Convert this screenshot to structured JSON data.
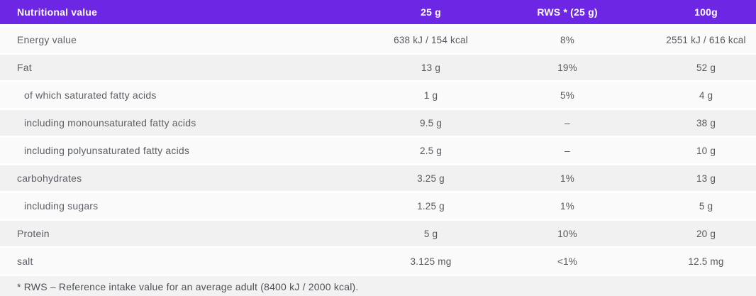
{
  "header": {
    "col_label": "Nutritional value",
    "col_25g": "25 g",
    "col_rws": "RWS * (25 g)",
    "col_100g": "100g"
  },
  "rows": [
    {
      "label": "Energy value",
      "v25": "638 kJ / 154 kcal",
      "rws": "8%",
      "v100": "2551 kJ / 616 kcal"
    },
    {
      "label": "Fat",
      "v25": "13 g",
      "rws": "19%",
      "v100": "52 g"
    },
    {
      "label": "of which saturated fatty acids",
      "v25": "1 g",
      "rws": "5%",
      "v100": "4 g"
    },
    {
      "label": "including monounsaturated fatty acids",
      "v25": "9.5 g",
      "rws": "–",
      "v100": "38 g"
    },
    {
      "label": "including polyunsaturated fatty acids",
      "v25": "2.5 g",
      "rws": "–",
      "v100": "10 g"
    },
    {
      "label": "carbohydrates",
      "v25": "3.25 g",
      "rws": "1%",
      "v100": "13 g"
    },
    {
      "label": "including sugars",
      "v25": "1.25 g",
      "rws": "1%",
      "v100": "5 g"
    },
    {
      "label": "Protein",
      "v25": "5 g",
      "rws": "10%",
      "v100": "20 g"
    },
    {
      "label": "salt",
      "v25": "3.125 mg",
      "rws": "<1%",
      "v100": "12.5 mg"
    }
  ],
  "footnote": "* RWS – Reference intake value for an average adult (8400 kJ / 2000 kcal).",
  "colors": {
    "header_bg": "#6c26e4",
    "row_light": "#fafafa",
    "row_gray": "#f1f1f2",
    "label_text": "#5d6066"
  }
}
